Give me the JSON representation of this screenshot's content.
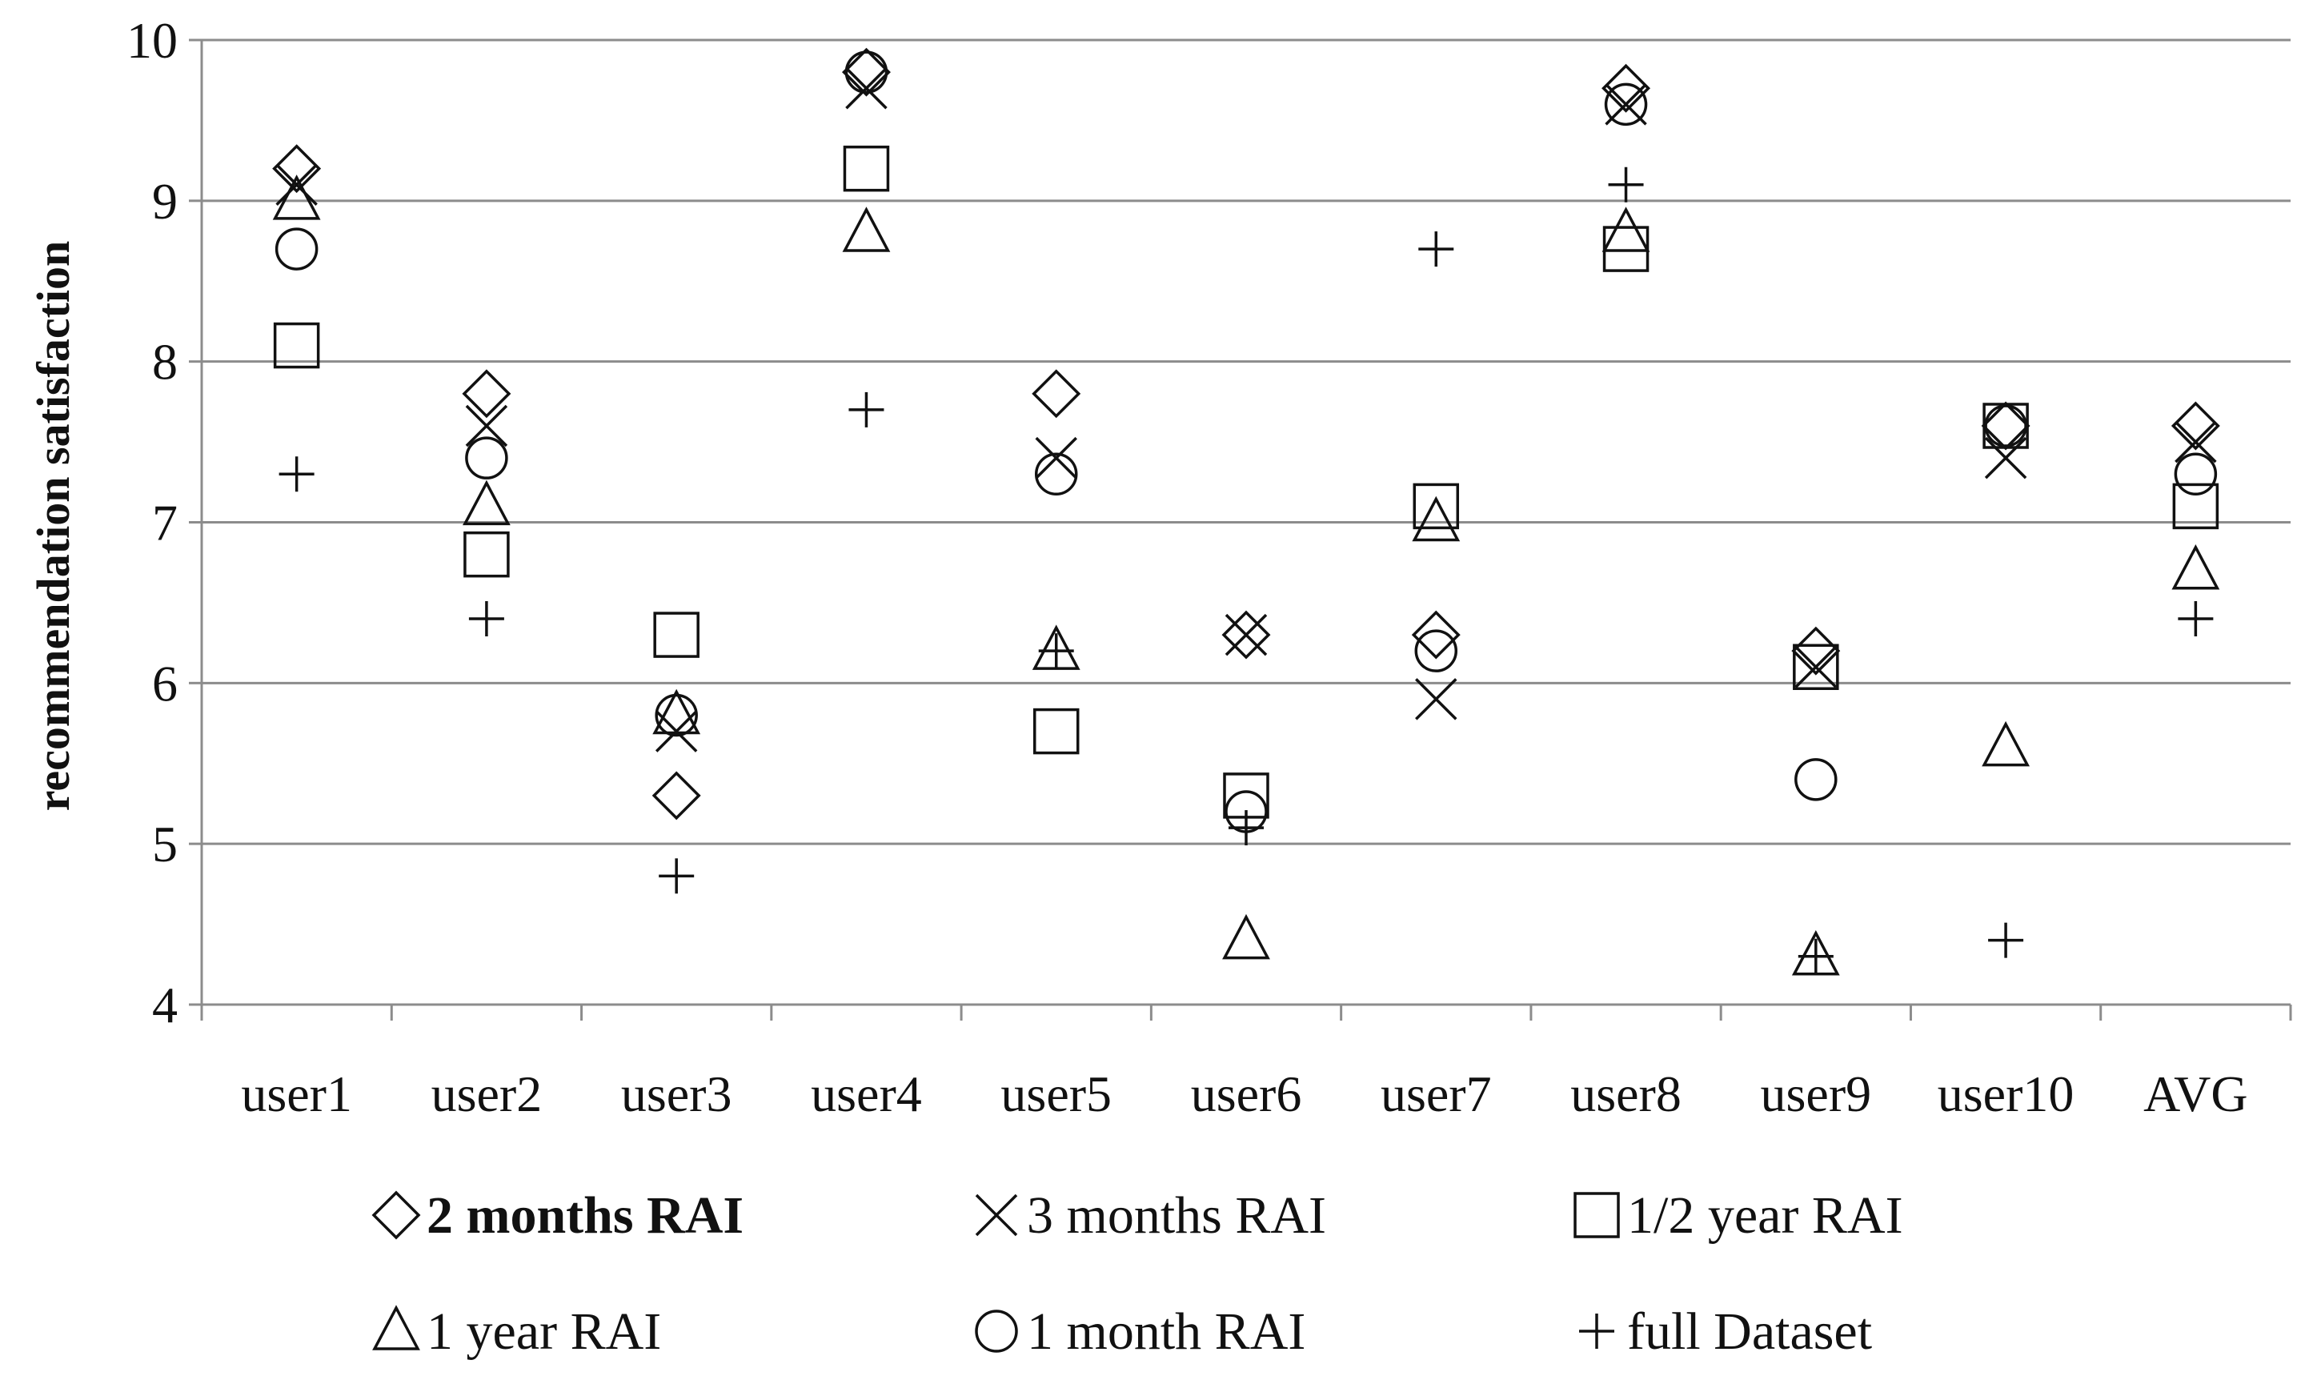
{
  "chart_data": {
    "type": "scatter",
    "title": "",
    "xlabel": "",
    "ylabel": "recommendation satisfaction",
    "ylim": [
      4,
      10
    ],
    "yticks": [
      4,
      5,
      6,
      7,
      8,
      9,
      10
    ],
    "grid": true,
    "legend_position": "bottom",
    "categories": [
      "user1",
      "user2",
      "user3",
      "user4",
      "user5",
      "user6",
      "user7",
      "user8",
      "user9",
      "user10",
      "AVG"
    ],
    "series": [
      {
        "name": "2 months RAI",
        "marker": "diamond",
        "bold_label": true,
        "values": [
          9.2,
          7.8,
          5.3,
          9.8,
          7.8,
          6.3,
          6.3,
          9.7,
          6.2,
          7.6,
          7.6
        ]
      },
      {
        "name": "3 months RAI",
        "marker": "x",
        "bold_label": false,
        "values": [
          9.1,
          7.6,
          5.7,
          9.7,
          7.4,
          6.3,
          5.9,
          9.6,
          6.1,
          7.4,
          7.5
        ]
      },
      {
        "name": "1/2 year RAI",
        "marker": "square",
        "bold_label": false,
        "values": [
          8.1,
          6.8,
          6.3,
          9.2,
          5.7,
          5.3,
          7.1,
          8.7,
          6.1,
          7.6,
          7.1
        ]
      },
      {
        "name": "1 year RAI",
        "marker": "triangle",
        "bold_label": false,
        "values": [
          9.0,
          7.1,
          5.8,
          8.8,
          6.2,
          4.4,
          7.0,
          8.8,
          4.3,
          5.6,
          6.7
        ]
      },
      {
        "name": "1 month RAI",
        "marker": "circle",
        "bold_label": false,
        "values": [
          8.7,
          7.4,
          5.8,
          9.8,
          7.3,
          5.2,
          6.2,
          9.6,
          5.4,
          7.6,
          7.3
        ]
      },
      {
        "name": "full Dataset",
        "marker": "plus",
        "bold_label": false,
        "values": [
          7.3,
          6.4,
          4.8,
          7.7,
          6.2,
          5.1,
          8.7,
          9.1,
          4.3,
          4.4,
          6.4
        ]
      }
    ]
  }
}
